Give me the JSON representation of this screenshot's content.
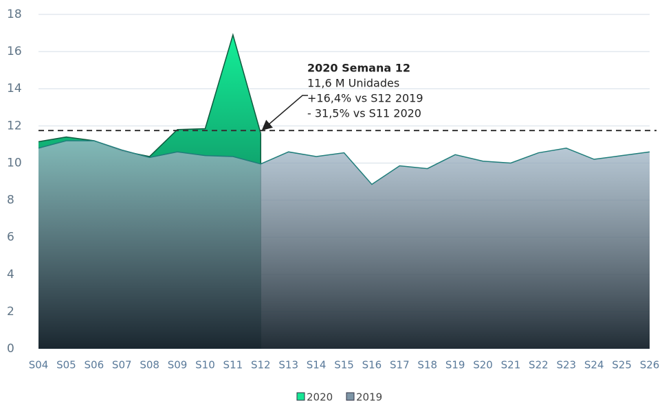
{
  "chart_data": {
    "type": "area",
    "categories": [
      "S04",
      "S05",
      "S06",
      "S07",
      "S08",
      "S09",
      "S10",
      "S11",
      "S12",
      "S13",
      "S14",
      "S15",
      "S16",
      "S17",
      "S18",
      "S19",
      "S20",
      "S21",
      "S22",
      "S23",
      "S24",
      "S25",
      "S26"
    ],
    "series": [
      {
        "name": "2020",
        "color": "#17e594",
        "values": [
          11.15,
          11.4,
          11.2,
          10.65,
          10.35,
          11.8,
          11.85,
          16.9,
          11.6,
          null,
          null,
          null,
          null,
          null,
          null,
          null,
          null,
          null,
          null,
          null,
          null,
          null,
          null
        ]
      },
      {
        "name": "2019",
        "color": "#7d95a6",
        "values": [
          10.8,
          11.2,
          11.2,
          10.7,
          10.3,
          10.6,
          10.4,
          10.35,
          9.95,
          10.6,
          10.35,
          10.55,
          8.85,
          9.85,
          9.7,
          10.45,
          10.1,
          10.0,
          10.55,
          10.8,
          10.2,
          10.4,
          10.6
        ]
      }
    ],
    "reference_line": 11.75,
    "annotation": {
      "title": "2020 Semana 12",
      "lines": [
        "11,6 M Unidades",
        "+16,4% vs S12 2019",
        "- 31,5% vs S11 2020"
      ]
    },
    "ylim": [
      0,
      18
    ],
    "yticks": [
      0,
      2,
      4,
      6,
      8,
      10,
      12,
      14,
      16,
      18
    ],
    "grid": true
  }
}
